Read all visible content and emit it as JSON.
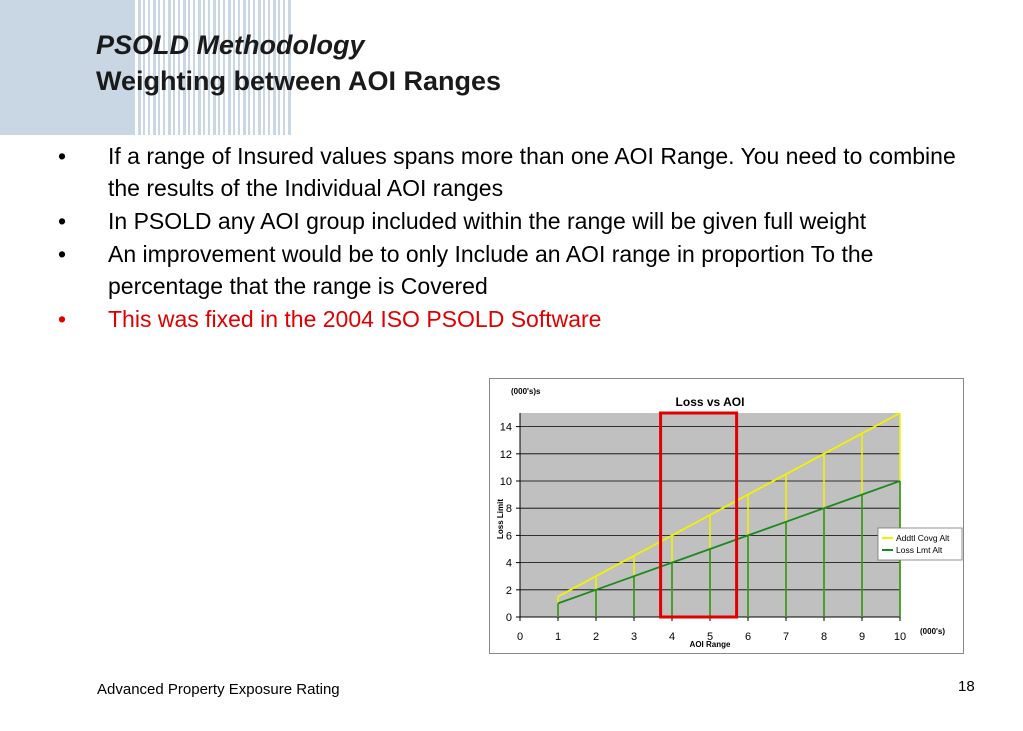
{
  "slide": {
    "title": "PSOLD Methodology",
    "subtitle": "Weighting between AOI Ranges",
    "bullet_symbol": "•",
    "bullets": [
      "If a range of Insured values spans more than one AOI Range.  You need to combine the results of the Individual AOI ranges",
      "In PSOLD any AOI group included within the range will be given full weight",
      "An improvement would be to only Include an AOI range in proportion To the percentage that the range is Covered",
      "This was fixed in the 2004 ISO PSOLD Software"
    ],
    "highlight_color": "#e00000",
    "footer": "Advanced Property Exposure Rating",
    "page_number": "18"
  },
  "chart_data": {
    "type": "line",
    "title": "Loss  vs AOI",
    "xlabel": "AOI Range",
    "ylabel": "Loss Limit",
    "x_unit": "(000's)",
    "y_unit": "(000's)s",
    "x": [
      0,
      1,
      2,
      3,
      4,
      5,
      6,
      7,
      8,
      9,
      10
    ],
    "xlim": [
      0,
      10
    ],
    "ylim": [
      0,
      15
    ],
    "yticks": [
      0,
      2,
      4,
      6,
      8,
      10,
      12,
      14
    ],
    "grid": true,
    "legend_position": "right",
    "drop_lines": true,
    "highlight_range": [
      3.7,
      5.7
    ],
    "highlight_color": "#e00000",
    "series": [
      {
        "name": "Addtl Covg Alt",
        "color": "#f2f200",
        "points": [
          [
            1,
            1.5
          ],
          [
            2,
            3
          ],
          [
            3,
            4.5
          ],
          [
            4,
            6
          ],
          [
            5,
            7.5
          ],
          [
            6,
            9
          ],
          [
            7,
            10.5
          ],
          [
            8,
            12
          ],
          [
            9,
            13.5
          ],
          [
            10,
            15
          ]
        ]
      },
      {
        "name": "Loss Lmt Alt",
        "color": "#1c8a1c",
        "points": [
          [
            1,
            1
          ],
          [
            2,
            2
          ],
          [
            3,
            3
          ],
          [
            4,
            4
          ],
          [
            5,
            5
          ],
          [
            6,
            6
          ],
          [
            7,
            7
          ],
          [
            8,
            8
          ],
          [
            9,
            9
          ],
          [
            10,
            10
          ]
        ]
      }
    ]
  }
}
